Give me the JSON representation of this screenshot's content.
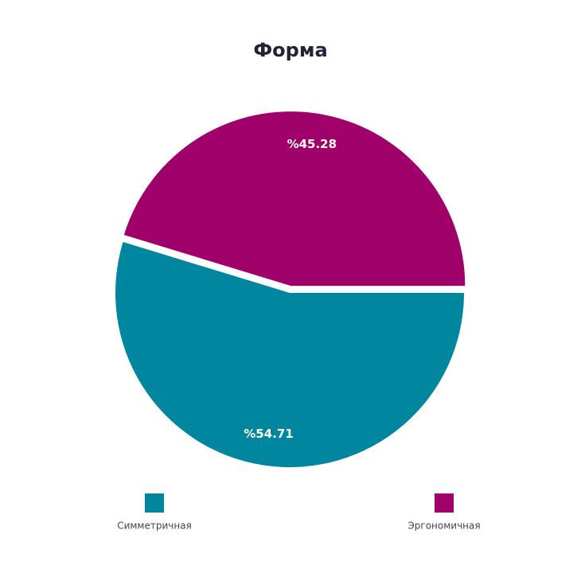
{
  "chart_data": {
    "type": "pie",
    "title": "Форма",
    "categories": [
      "Симметричная",
      "Эргономичная"
    ],
    "values": [
      54.71,
      45.28
    ],
    "value_labels": [
      "%54.71",
      "%45.28"
    ],
    "colors": [
      "#00869e",
      "#a0006a"
    ]
  }
}
